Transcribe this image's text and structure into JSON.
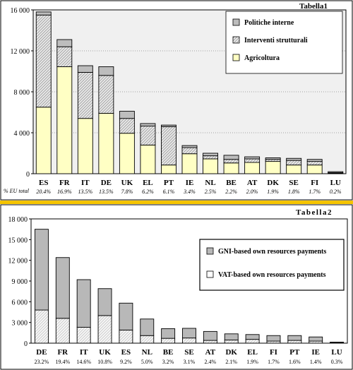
{
  "colors": {
    "page_bg": "#ffffff",
    "panel_border": "#000000",
    "divider": "#f5c400",
    "plot1_bg": "#f0f0f0",
    "plot2_bg": "#ffffff",
    "agricoltura": "#ffffc4",
    "interventi": "#d2d2d2",
    "politiche": "#bdbdbd",
    "gni": "#b8b8b8",
    "vat": "#f4f4f4",
    "grid": "#555555"
  },
  "chart_data": [
    {
      "type": "bar",
      "stacked": true,
      "title": "Tabella1",
      "ylim": [
        0,
        16000
      ],
      "yticks": [
        "0",
        "4 000",
        "8 000",
        "12 000",
        "16 000"
      ],
      "grid": true,
      "legend_position": "top-right",
      "categories": [
        "ES",
        "FR",
        "IT",
        "DE",
        "UK",
        "EL",
        "PT",
        "IE",
        "NL",
        "BE",
        "AT",
        "DK",
        "SE",
        "FI",
        "LU"
      ],
      "share_label": "% EU total",
      "shares": [
        "20.4%",
        "16.9%",
        "13.5%",
        "13.5%",
        "7.8%",
        "6.2%",
        "6.1%",
        "3.4%",
        "2.5%",
        "2.2%",
        "2.0%",
        "1.9%",
        "1.8%",
        "1.7%",
        "0.2%"
      ],
      "series": [
        {
          "name": "Agricoltura",
          "values": [
            6500,
            10450,
            5400,
            5900,
            3950,
            2800,
            850,
            1950,
            1450,
            1050,
            1100,
            1200,
            850,
            850,
            50
          ]
        },
        {
          "name": "Interventi strutturali",
          "values": [
            9000,
            1950,
            4500,
            3700,
            1450,
            1850,
            3750,
            600,
            300,
            350,
            350,
            200,
            450,
            350,
            50
          ]
        },
        {
          "name": "Politiche interne",
          "values": [
            300,
            700,
            650,
            850,
            700,
            250,
            150,
            200,
            250,
            400,
            200,
            150,
            200,
            200,
            100
          ]
        }
      ],
      "legend_order": [
        "Politiche interne",
        "Interventi strutturali",
        "Agricoltura"
      ]
    },
    {
      "type": "bar",
      "stacked": true,
      "title": "Tabella2",
      "ylim": [
        0,
        18000
      ],
      "yticks": [
        "0",
        "3 000",
        "6 000",
        "9 000",
        "12 000",
        "15 000",
        "18 000"
      ],
      "grid": false,
      "legend_position": "right",
      "categories": [
        "DE",
        "FR",
        "IT",
        "UK",
        "ES",
        "NL",
        "BE",
        "SE",
        "AT",
        "DK",
        "EL",
        "FI",
        "PT",
        "IE",
        "LU"
      ],
      "shares": [
        "23.2%",
        "19.4%",
        "14.6%",
        "10.8%",
        "9.2%",
        "5.0%",
        "3.2%",
        "3.1%",
        "2.4%",
        "2.1%",
        "1.9%",
        "1.7%",
        "1.6%",
        "1.4%",
        "0.3%"
      ],
      "series": [
        {
          "name": "VAT-based own resources payments",
          "values": [
            4800,
            3600,
            2300,
            4000,
            1900,
            1100,
            700,
            750,
            400,
            450,
            550,
            300,
            400,
            300,
            50
          ]
        },
        {
          "name": "GNI-based own resources payments",
          "values": [
            11700,
            8800,
            6900,
            3900,
            3900,
            2400,
            1400,
            1400,
            1300,
            900,
            700,
            800,
            700,
            600,
            100
          ]
        }
      ],
      "legend_order": [
        "GNI-based own resources payments",
        "VAT-based own resources payments"
      ]
    }
  ]
}
